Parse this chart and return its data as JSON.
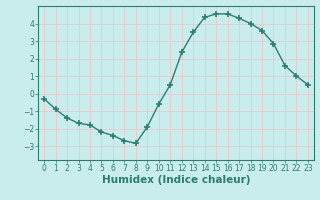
{
  "title": "",
  "xlabel": "Humidex (Indice chaleur)",
  "ylabel": "",
  "x": [
    0,
    1,
    2,
    3,
    4,
    5,
    6,
    7,
    8,
    9,
    10,
    11,
    12,
    13,
    14,
    15,
    16,
    17,
    18,
    19,
    20,
    21,
    22,
    23
  ],
  "y": [
    -0.3,
    -0.9,
    -1.4,
    -1.7,
    -1.8,
    -2.2,
    -2.4,
    -2.7,
    -2.85,
    -1.9,
    -0.6,
    0.5,
    2.35,
    3.5,
    4.35,
    4.55,
    4.55,
    4.3,
    4.0,
    3.6,
    2.85,
    1.6,
    1.0,
    0.5
  ],
  "line_color": "#2d7d6f",
  "marker": "+",
  "marker_size": 4,
  "marker_linewidth": 1.2,
  "bg_color": "#c9eded",
  "grid_color": "#e8c8c8",
  "ylim": [
    -3.8,
    5.0
  ],
  "yticks": [
    -3,
    -2,
    -1,
    0,
    1,
    2,
    3,
    4
  ],
  "xlim": [
    -0.5,
    23.5
  ],
  "xticks": [
    0,
    1,
    2,
    3,
    4,
    5,
    6,
    7,
    8,
    9,
    10,
    11,
    12,
    13,
    14,
    15,
    16,
    17,
    18,
    19,
    20,
    21,
    22,
    23
  ],
  "tick_fontsize": 5.5,
  "xlabel_fontsize": 7.5,
  "label_color": "#2d7d6f",
  "spine_color": "#2d7d6f",
  "linewidth": 1.0
}
